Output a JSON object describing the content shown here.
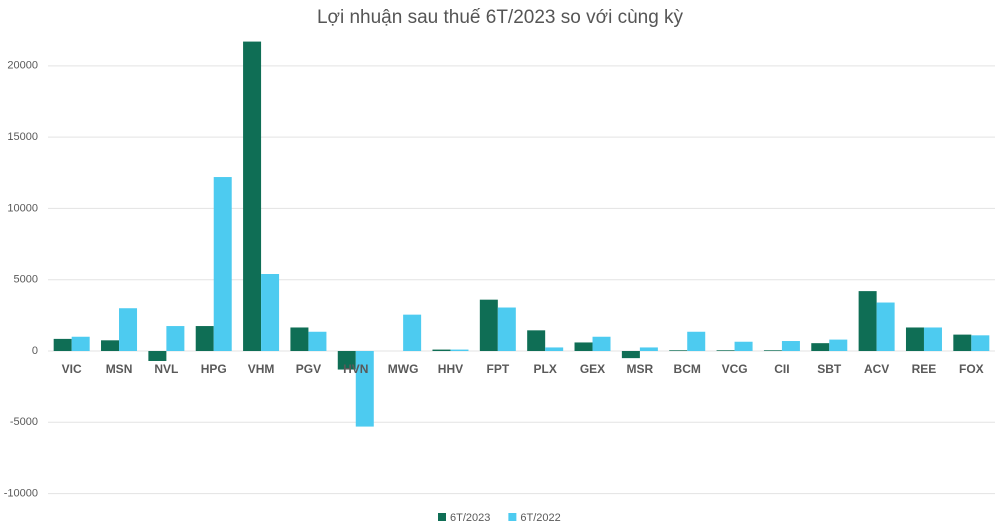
{
  "chart_data": {
    "type": "bar",
    "title": "Lợi nhuận sau thuế 6T/2023 so với cùng kỳ",
    "categories": [
      "VIC",
      "MSN",
      "NVL",
      "HPG",
      "VHM",
      "PGV",
      "HVN",
      "MWG",
      "HHV",
      "FPT",
      "PLX",
      "GEX",
      "MSR",
      "BCM",
      "VCG",
      "CII",
      "SBT",
      "ACV",
      "REE",
      "FOX"
    ],
    "series": [
      {
        "name": "6T/2023",
        "color": "#0f6e55",
        "values": [
          850,
          750,
          -700,
          1750,
          21700,
          1650,
          -1300,
          0,
          100,
          3600,
          1450,
          600,
          -500,
          50,
          50,
          50,
          550,
          4200,
          1650,
          1150
        ]
      },
      {
        "name": "6T/2022",
        "color": "#4dcbf0",
        "values": [
          1000,
          3000,
          1750,
          12200,
          5400,
          1350,
          -5300,
          2550,
          100,
          3050,
          250,
          1000,
          250,
          1350,
          650,
          700,
          800,
          3400,
          1650,
          1100
        ]
      }
    ],
    "ylim": [
      -10000,
      22000
    ],
    "yticks": [
      -10000,
      -5000,
      0,
      5000,
      10000,
      15000,
      20000
    ],
    "grid": true,
    "legend": "bottom"
  }
}
